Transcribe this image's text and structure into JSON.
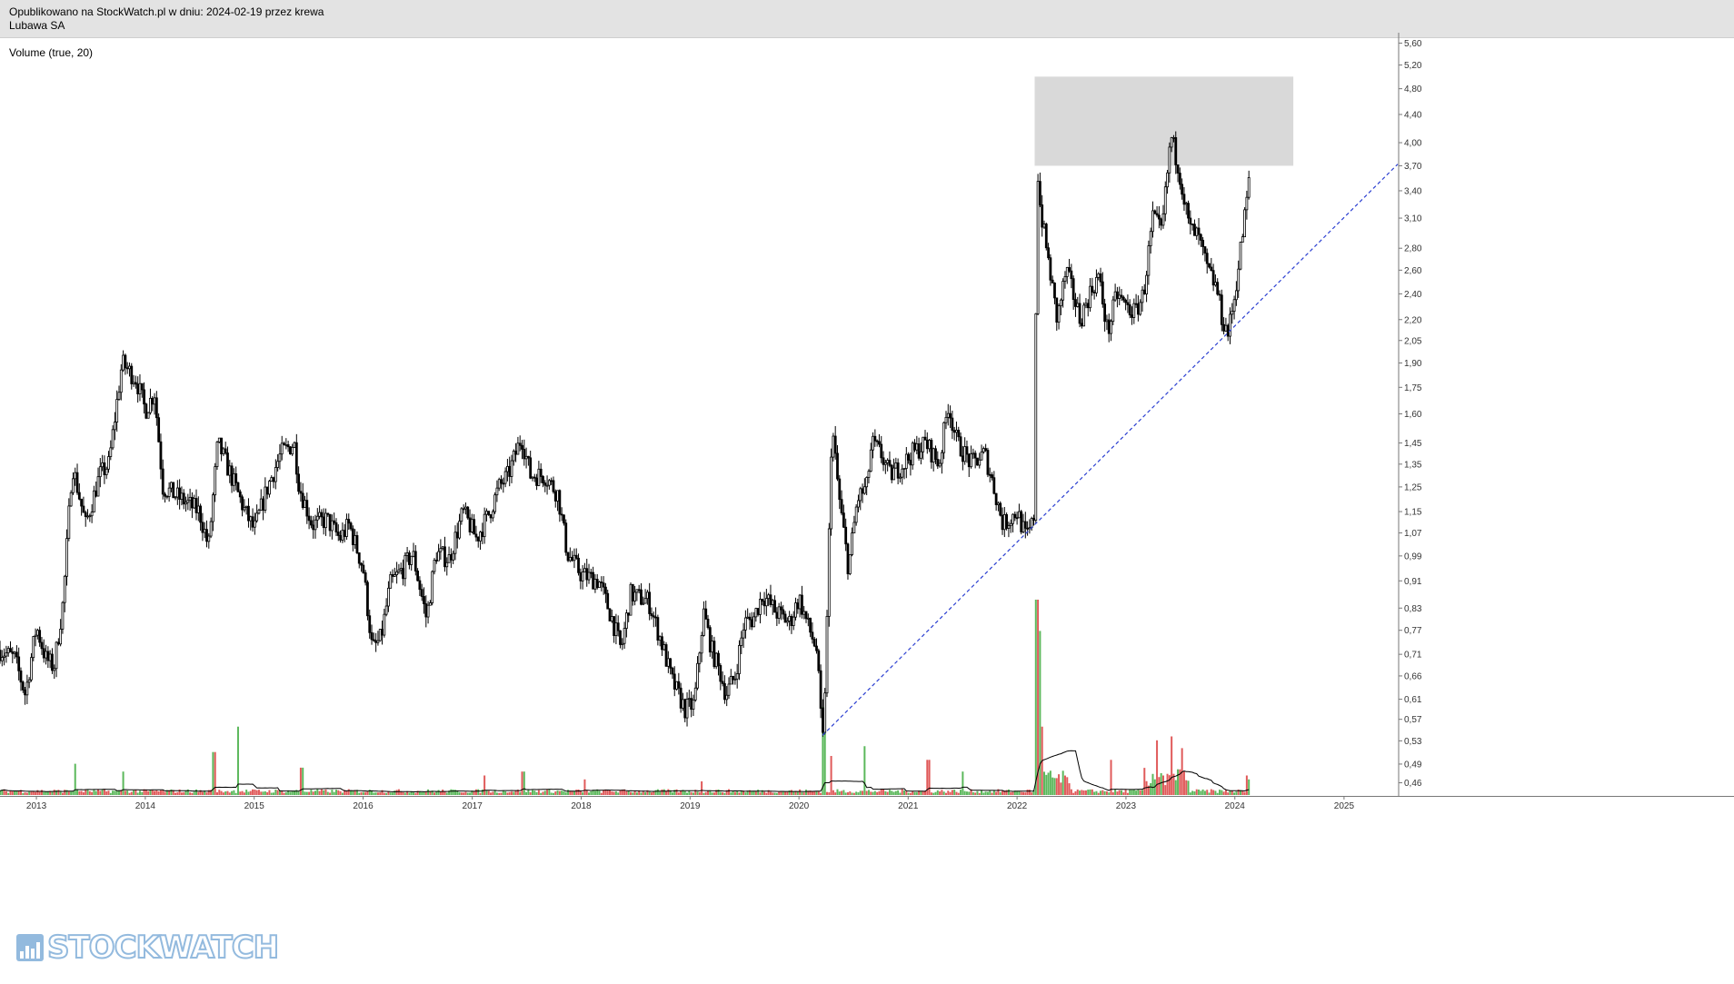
{
  "header": {
    "published_line": "Opublikowano na StockWatch.pl w dniu: 2024-02-19 przez krewa",
    "instrument": "Lubawa SA"
  },
  "indicator_label": "Volume (true, 20)",
  "logo": {
    "text": "STOCKWATCH"
  },
  "colors": {
    "background": "#ffffff",
    "header_bg": "#e3e3e3",
    "candles": "#000000",
    "volume_up": "#5cb85c",
    "volume_down": "#e05a5a",
    "volume_ma": "#000000",
    "trendline": "#2b3fd1",
    "zone": "#d9d9d9"
  },
  "chart_data": {
    "type": "candlestick",
    "scale": "log",
    "ylim": [
      0.44,
      5.8
    ],
    "xlim": [
      "2012-09-01",
      "2025-06-30"
    ],
    "y_ticks": [
      "5,60",
      "5,20",
      "4,80",
      "4,40",
      "4,00",
      "3,70",
      "3,40",
      "3,10",
      "2,80",
      "2,60",
      "2,40",
      "2,20",
      "2,05",
      "1,90",
      "1,75",
      "1,60",
      "1,45",
      "1,35",
      "1,25",
      "1,15",
      "1,07",
      "0,99",
      "0,91",
      "0,83",
      "0,77",
      "0,71",
      "0,66",
      "0,61",
      "0,57",
      "0,53",
      "0,49",
      "0,46"
    ],
    "x_ticks": [
      "2013",
      "2014",
      "2015",
      "2016",
      "2017",
      "2018",
      "2019",
      "2020",
      "2021",
      "2022",
      "2023",
      "2024",
      "2025"
    ],
    "grid": false,
    "price_path": [
      [
        "2012-09-01",
        0.72
      ],
      [
        "2012-10-20",
        0.7
      ],
      [
        "2012-11-25",
        0.62
      ],
      [
        "2013-01-01",
        0.78
      ],
      [
        "2013-02-01",
        0.7
      ],
      [
        "2013-03-01",
        0.68
      ],
      [
        "2013-04-01",
        0.85
      ],
      [
        "2013-05-01",
        1.35
      ],
      [
        "2013-06-15",
        1.1
      ],
      [
        "2013-08-01",
        1.3
      ],
      [
        "2013-09-01",
        1.35
      ],
      [
        "2013-10-15",
        1.9
      ],
      [
        "2013-12-01",
        1.8
      ],
      [
        "2014-01-01",
        1.62
      ],
      [
        "2014-02-01",
        1.72
      ],
      [
        "2014-03-01",
        1.25
      ],
      [
        "2014-05-01",
        1.2
      ],
      [
        "2014-07-01",
        1.15
      ],
      [
        "2014-08-01",
        1.02
      ],
      [
        "2014-09-01",
        1.45
      ],
      [
        "2014-10-15",
        1.3
      ],
      [
        "2014-12-01",
        1.15
      ],
      [
        "2015-01-01",
        1.08
      ],
      [
        "2015-02-15",
        1.25
      ],
      [
        "2015-04-01",
        1.4
      ],
      [
        "2015-05-15",
        1.45
      ],
      [
        "2015-06-01",
        1.25
      ],
      [
        "2015-07-15",
        1.1
      ],
      [
        "2015-09-01",
        1.12
      ],
      [
        "2015-10-15",
        1.05
      ],
      [
        "2015-11-15",
        1.1
      ],
      [
        "2016-01-01",
        0.95
      ],
      [
        "2016-02-01",
        0.72
      ],
      [
        "2016-03-01",
        0.75
      ],
      [
        "2016-04-01",
        0.9
      ],
      [
        "2016-05-15",
        0.95
      ],
      [
        "2016-06-15",
        1.0
      ],
      [
        "2016-08-01",
        0.8
      ],
      [
        "2016-09-01",
        1.0
      ],
      [
        "2016-10-15",
        0.98
      ],
      [
        "2016-12-01",
        1.15
      ],
      [
        "2017-01-15",
        1.05
      ],
      [
        "2017-03-01",
        1.15
      ],
      [
        "2017-04-01",
        1.25
      ],
      [
        "2017-05-01",
        1.3
      ],
      [
        "2017-06-15",
        1.48
      ],
      [
        "2017-07-15",
        1.3
      ],
      [
        "2017-09-01",
        1.3
      ],
      [
        "2017-10-15",
        1.22
      ],
      [
        "2017-11-15",
        1.0
      ],
      [
        "2018-01-01",
        0.93
      ],
      [
        "2018-03-01",
        0.91
      ],
      [
        "2018-04-15",
        0.8
      ],
      [
        "2018-05-15",
        0.72
      ],
      [
        "2018-06-15",
        0.87
      ],
      [
        "2018-08-15",
        0.85
      ],
      [
        "2018-10-01",
        0.73
      ],
      [
        "2018-11-01",
        0.65
      ],
      [
        "2018-12-15",
        0.59
      ],
      [
        "2019-01-15",
        0.6
      ],
      [
        "2019-02-15",
        0.82
      ],
      [
        "2019-03-15",
        0.72
      ],
      [
        "2019-04-15",
        0.66
      ],
      [
        "2019-05-01",
        0.62
      ],
      [
        "2019-06-01",
        0.66
      ],
      [
        "2019-07-01",
        0.79
      ],
      [
        "2019-08-01",
        0.8
      ],
      [
        "2019-09-01",
        0.87
      ],
      [
        "2019-10-15",
        0.82
      ],
      [
        "2019-12-01",
        0.79
      ],
      [
        "2020-01-01",
        0.86
      ],
      [
        "2020-02-01",
        0.78
      ],
      [
        "2020-03-01",
        0.72
      ],
      [
        "2020-03-20",
        0.52
      ],
      [
        "2020-04-01",
        0.7
      ],
      [
        "2020-04-20",
        1.55
      ],
      [
        "2020-05-15",
        1.2
      ],
      [
        "2020-06-15",
        0.95
      ],
      [
        "2020-07-15",
        1.2
      ],
      [
        "2020-08-15",
        1.25
      ],
      [
        "2020-09-01",
        1.45
      ],
      [
        "2020-10-01",
        1.4
      ],
      [
        "2020-11-01",
        1.3
      ],
      [
        "2020-12-15",
        1.35
      ],
      [
        "2021-01-15",
        1.4
      ],
      [
        "2021-03-01",
        1.45
      ],
      [
        "2021-04-15",
        1.35
      ],
      [
        "2021-05-15",
        1.65
      ],
      [
        "2021-06-15",
        1.45
      ],
      [
        "2021-08-01",
        1.35
      ],
      [
        "2021-09-15",
        1.4
      ],
      [
        "2021-10-15",
        1.25
      ],
      [
        "2021-11-15",
        1.1
      ],
      [
        "2022-01-01",
        1.15
      ],
      [
        "2022-02-01",
        1.05
      ],
      [
        "2022-02-20",
        1.1
      ],
      [
        "2022-03-01",
        1.15
      ],
      [
        "2022-03-08",
        3.8
      ],
      [
        "2022-03-20",
        3.2
      ],
      [
        "2022-04-15",
        2.7
      ],
      [
        "2022-05-15",
        2.2
      ],
      [
        "2022-06-15",
        2.6
      ],
      [
        "2022-08-01",
        2.2
      ],
      [
        "2022-09-01",
        2.4
      ],
      [
        "2022-10-01",
        2.55
      ],
      [
        "2022-11-01",
        2.1
      ],
      [
        "2022-12-01",
        2.4
      ],
      [
        "2023-01-01",
        2.3
      ],
      [
        "2023-02-01",
        2.25
      ],
      [
        "2023-03-01",
        2.4
      ],
      [
        "2023-04-01",
        3.1
      ],
      [
        "2023-05-01",
        2.95
      ],
      [
        "2023-06-01",
        4.1
      ],
      [
        "2023-07-01",
        3.6
      ],
      [
        "2023-08-01",
        3.0
      ],
      [
        "2023-09-01",
        2.9
      ],
      [
        "2023-10-01",
        2.6
      ],
      [
        "2023-11-01",
        2.45
      ],
      [
        "2023-11-20",
        2.2
      ],
      [
        "2023-12-10",
        2.1
      ],
      [
        "2024-01-01",
        2.4
      ],
      [
        "2024-01-25",
        2.9
      ],
      [
        "2024-02-19",
        3.55
      ]
    ],
    "volume_spikes": [
      [
        "2013-05-10",
        0.16
      ],
      [
        "2013-10-20",
        0.12
      ],
      [
        "2014-08-20",
        0.22
      ],
      [
        "2014-11-10",
        0.35
      ],
      [
        "2015-06-10",
        0.14
      ],
      [
        "2017-02-10",
        0.1
      ],
      [
        "2017-06-20",
        0.12
      ],
      [
        "2018-01-15",
        0.08
      ],
      [
        "2019-02-10",
        0.07
      ],
      [
        "2020-03-25",
        0.45
      ],
      [
        "2020-04-20",
        0.2
      ],
      [
        "2020-08-10",
        0.25
      ],
      [
        "2021-03-10",
        0.18
      ],
      [
        "2021-07-01",
        0.12
      ],
      [
        "2022-03-08",
        1.0
      ],
      [
        "2022-03-15",
        0.84
      ],
      [
        "2022-03-25",
        0.35
      ],
      [
        "2022-11-10",
        0.18
      ],
      [
        "2023-04-15",
        0.28
      ],
      [
        "2023-06-01",
        0.3
      ],
      [
        "2023-07-10",
        0.24
      ],
      [
        "2024-02-10",
        0.1
      ],
      [
        "2024-02-19",
        0.08
      ]
    ],
    "annotations": {
      "resistance_zone": {
        "x_start": "2022-03-01",
        "x_end": "2024-07-15",
        "y_low": 3.7,
        "y_high": 5.0
      },
      "trendline": {
        "from": [
          "2020-03-20",
          0.54
        ],
        "to": [
          "2025-06-30",
          3.72
        ]
      }
    },
    "title": "",
    "xlabel": "",
    "ylabel": ""
  }
}
